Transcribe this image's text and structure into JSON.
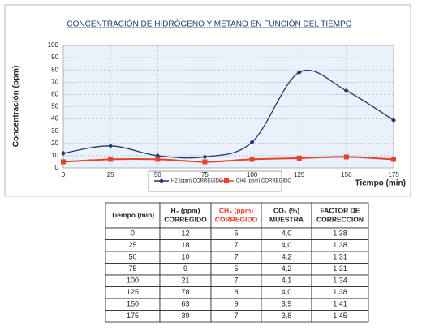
{
  "chart_data": {
    "type": "line",
    "title": "CONCENTRACIÓN DE HIDRÓGENO Y METANO EN FUNCIÓN DEL TIEMPO",
    "x_label": "Tiempo (min)",
    "y_label": "Concentración (ppm)",
    "x": [
      0,
      25,
      50,
      75,
      100,
      125,
      150,
      175
    ],
    "series": [
      {
        "name": "H2 (ppm) CORREGIDO",
        "color": "#1f3a6e",
        "marker": "diamond",
        "values": [
          12,
          18,
          10,
          9,
          21,
          78,
          63,
          39
        ]
      },
      {
        "name": "CH4 (ppm) CORREGIDO",
        "color": "#e8402a",
        "marker": "square",
        "values": [
          5,
          7,
          7,
          5,
          7,
          8,
          9,
          7
        ]
      }
    ],
    "xlim": [
      0,
      175
    ],
    "xticks": [
      0,
      25,
      50,
      75,
      100,
      125,
      150,
      175
    ],
    "ylim": [
      0,
      100
    ],
    "yticks": [
      0,
      10,
      20,
      30,
      40,
      50,
      60,
      70,
      80,
      90,
      100
    ],
    "grid": true,
    "legend": "bottom"
  },
  "table": {
    "header": [
      [
        "Tiempo (min)"
      ],
      [
        "H₂ (ppm)",
        "CORREGIDO"
      ],
      [
        "CH₄ (ppm)",
        "CORREGIDO"
      ],
      [
        "CO₂ (%)",
        "MUESTRA"
      ],
      [
        "FACTOR DE",
        "CORRECCION"
      ]
    ],
    "rows": [
      [
        "0",
        "12",
        "5",
        "4,0",
        "1,38"
      ],
      [
        "25",
        "18",
        "7",
        "4,0",
        "1,38"
      ],
      [
        "50",
        "10",
        "7",
        "4,2",
        "1,31"
      ],
      [
        "75",
        "9",
        "5",
        "4,2",
        "1,31"
      ],
      [
        "100",
        "21",
        "7",
        "4,1",
        "1,34"
      ],
      [
        "125",
        "78",
        "8",
        "4,0",
        "1,38"
      ],
      [
        "150",
        "63",
        "9",
        "3,9",
        "1,41"
      ],
      [
        "175",
        "39",
        "7",
        "3,8",
        "1,45"
      ]
    ]
  }
}
